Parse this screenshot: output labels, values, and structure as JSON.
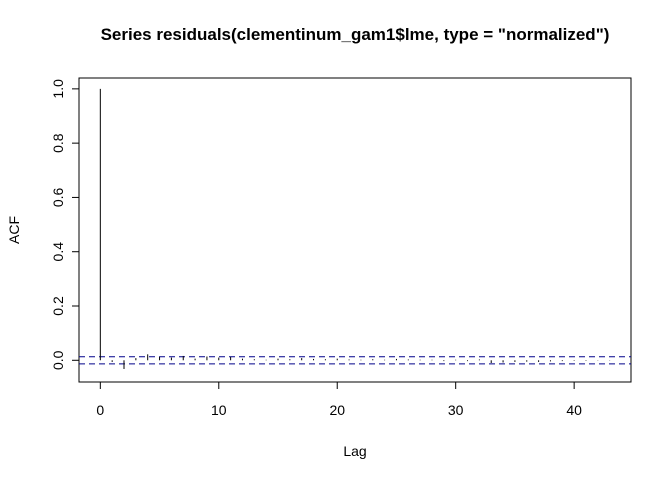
{
  "chart_data": {
    "type": "bar",
    "title": "Series  residuals(clementinum_gam1$lme, type = \"normalized\")",
    "xlabel": "Lag",
    "ylabel": "ACF",
    "xlim": [
      -1.8,
      44.8
    ],
    "ylim": [
      -0.08,
      1.04
    ],
    "x_ticks": [
      0,
      10,
      20,
      30,
      40
    ],
    "y_ticks": [
      0.0,
      0.2,
      0.4,
      0.6,
      0.8,
      1.0
    ],
    "x_tick_labels": [
      "0",
      "10",
      "20",
      "30",
      "40"
    ],
    "y_tick_labels": [
      "0.0",
      "0.2",
      "0.4",
      "0.6",
      "0.8",
      "1.0"
    ],
    "lags": [
      0,
      1,
      2,
      3,
      4,
      5,
      6,
      7,
      8,
      9,
      10,
      11,
      12,
      13,
      14,
      15,
      16,
      17,
      18,
      19,
      20,
      21,
      22,
      23,
      24,
      25,
      26,
      27,
      28,
      29,
      30,
      31,
      32,
      33,
      34,
      35,
      36,
      37,
      38,
      39,
      40,
      41,
      42,
      43
    ],
    "acf": [
      1.0,
      -0.006,
      -0.032,
      0.008,
      0.022,
      0.012,
      0.01,
      0.016,
      0.006,
      0.014,
      0.01,
      0.012,
      0.006,
      0.004,
      0.002,
      0.006,
      0.004,
      0.008,
      0.005,
      0.004,
      0.006,
      0.003,
      0.002,
      0.004,
      0.002,
      0.005,
      0.003,
      0.002,
      0.002,
      -0.003,
      0.002,
      -0.003,
      0.003,
      -0.01,
      -0.008,
      -0.006,
      -0.005,
      -0.006,
      -0.004,
      -0.003,
      -0.002,
      -0.002,
      -0.001,
      -0.001
    ],
    "confidence_bound": 0.013,
    "colors": {
      "bars": "#000000",
      "confidence": "#00008B",
      "axes": "#000000"
    }
  }
}
